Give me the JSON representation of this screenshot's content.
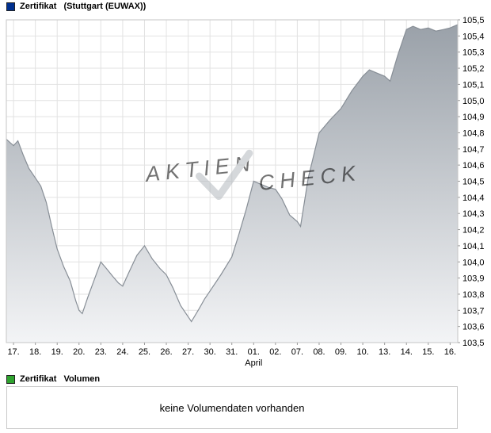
{
  "price_legend": {
    "name": "Zertifikat",
    "detail": "(Stuttgart (EUWAX))",
    "marker_color": "#00308f"
  },
  "watermark": {
    "part1": "AKTIEN",
    "part2": "CHECK"
  },
  "chart_data": {
    "type": "area",
    "title": "",
    "xlabel": "",
    "ylabel": "",
    "grid": true,
    "legend_position": "top-left",
    "x_tick_labels": [
      "17.",
      "18.",
      "19.",
      "20.",
      "23.",
      "24.",
      "25.",
      "26.",
      "27.",
      "30.",
      "31.",
      "01.",
      "02.",
      "07.",
      "08.",
      "09.",
      "10.",
      "13.",
      "14.",
      "15.",
      "16."
    ],
    "month_label": "April",
    "month_label_day_index": 11.0,
    "y_tick_labels": [
      "105,5",
      "105,4",
      "105,3",
      "105,2",
      "105,1",
      "105,0",
      "104,9",
      "104,8",
      "104,7",
      "104,6",
      "104,5",
      "104,4",
      "104,3",
      "104,2",
      "104,1",
      "104,0",
      "103,9",
      "103,8",
      "103,7",
      "103,6",
      "103,5"
    ],
    "ylim": [
      103.5,
      105.5
    ],
    "xlim": [
      -0.33,
      20.35
    ],
    "series": [
      {
        "name": "Zertifikat (Stuttgart (EUWAX))",
        "points": [
          [
            -0.33,
            104.76
          ],
          [
            0,
            104.72
          ],
          [
            0.2,
            104.75
          ],
          [
            0.45,
            104.66
          ],
          [
            0.7,
            104.58
          ],
          [
            1.0,
            104.52
          ],
          [
            1.25,
            104.47
          ],
          [
            1.5,
            104.37
          ],
          [
            1.75,
            104.22
          ],
          [
            2.0,
            104.08
          ],
          [
            2.3,
            103.97
          ],
          [
            2.6,
            103.88
          ],
          [
            2.85,
            103.76
          ],
          [
            3.0,
            103.7
          ],
          [
            3.15,
            103.68
          ],
          [
            3.4,
            103.78
          ],
          [
            3.7,
            103.89
          ],
          [
            4.0,
            104.0
          ],
          [
            4.25,
            103.96
          ],
          [
            4.55,
            103.91
          ],
          [
            4.8,
            103.87
          ],
          [
            5.0,
            103.85
          ],
          [
            5.3,
            103.94
          ],
          [
            5.65,
            104.04
          ],
          [
            6.0,
            104.1
          ],
          [
            6.35,
            104.02
          ],
          [
            6.7,
            103.96
          ],
          [
            7.0,
            103.92
          ],
          [
            7.3,
            103.84
          ],
          [
            7.65,
            103.73
          ],
          [
            8.0,
            103.66
          ],
          [
            8.15,
            103.63
          ],
          [
            8.5,
            103.71
          ],
          [
            8.75,
            103.77
          ],
          [
            9.0,
            103.82
          ],
          [
            9.5,
            103.92
          ],
          [
            10.0,
            104.03
          ],
          [
            10.3,
            104.16
          ],
          [
            10.65,
            104.32
          ],
          [
            11.0,
            104.5
          ],
          [
            11.35,
            104.48
          ],
          [
            11.7,
            104.46
          ],
          [
            12.0,
            104.45
          ],
          [
            12.3,
            104.39
          ],
          [
            12.65,
            104.29
          ],
          [
            13.0,
            104.25
          ],
          [
            13.15,
            104.22
          ],
          [
            13.5,
            104.52
          ],
          [
            14.0,
            104.8
          ],
          [
            14.5,
            104.88
          ],
          [
            15.0,
            104.95
          ],
          [
            15.5,
            105.06
          ],
          [
            16.0,
            105.15
          ],
          [
            16.3,
            105.19
          ],
          [
            16.65,
            105.17
          ],
          [
            17.0,
            105.15
          ],
          [
            17.25,
            105.12
          ],
          [
            17.6,
            105.28
          ],
          [
            18.0,
            105.44
          ],
          [
            18.3,
            105.46
          ],
          [
            18.65,
            105.44
          ],
          [
            19.0,
            105.45
          ],
          [
            19.35,
            105.43
          ],
          [
            19.7,
            105.44
          ],
          [
            20.0,
            105.45
          ],
          [
            20.35,
            105.47
          ]
        ]
      }
    ],
    "colors": {
      "area_fill_top": "#9aa1a9",
      "area_fill_bottom": "#f3f4f6",
      "line": "#878e96",
      "grid": "#e2e2e2",
      "border": "#c6c6c6",
      "tick": "#9a9a9a",
      "watermark": "#b4b9be"
    }
  },
  "volume_legend": {
    "name": "Zertifikat",
    "detail": "Volumen",
    "marker_color": "#2fa32f"
  },
  "volume": {
    "message": "keine Volumendaten vorhanden"
  }
}
